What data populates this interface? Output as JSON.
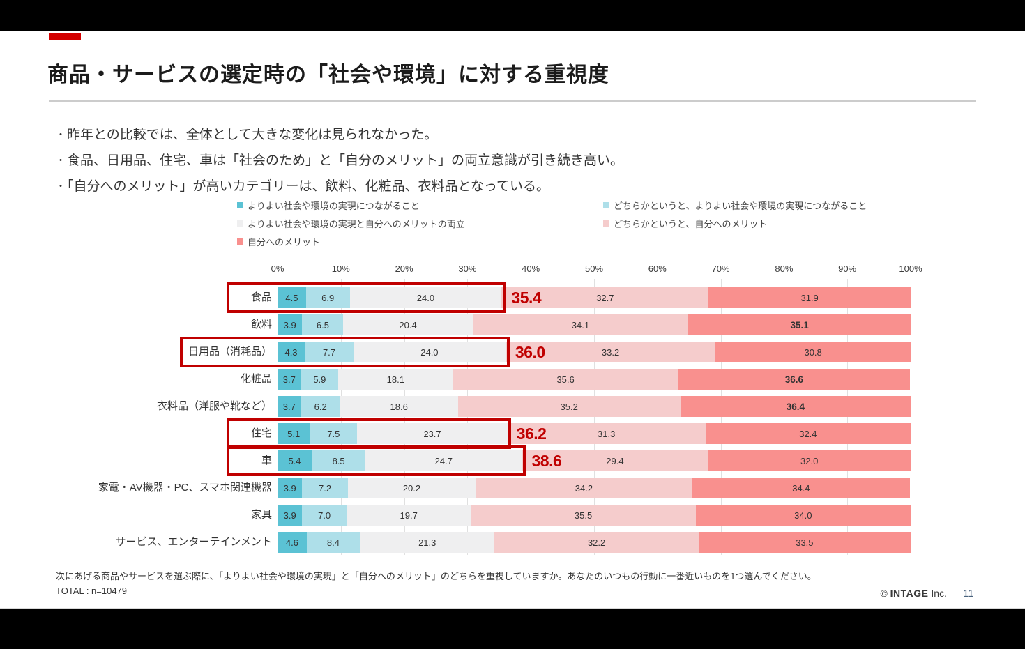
{
  "slide": {
    "title": "商品・サービスの選定時の「社会や環境」に対する重視度",
    "bullets": [
      "昨年との比較では、全体として大きな変化は見られなかった。",
      "食品、日用品、住宅、車は「社会のため」と「自分のメリット」の両立意識が引き続き高い。",
      "「自分へのメリット」が高いカテゴリーは、飲料、化粧品、衣料品となっている。"
    ],
    "footnote": "次にあげる商品やサービスを選ぶ際に、「よりよい社会や環境の実現」と「自分へのメリット」のどちらを重視していますか。あなたのいつもの行動に一番近いものを1つ選んでください。",
    "total_label": "TOTAL : n=10479",
    "copyright_symbol": "©",
    "copyright_brand": "INTAGE",
    "copyright_suffix": "Inc.",
    "page_number": "11"
  },
  "colors": {
    "accent": "#d40000",
    "highlight": "#c00000",
    "teal": "#5bc2d4",
    "cyan": "#aedfe9",
    "gray": "#efeff0",
    "pink": "#f5cccc",
    "red": "#f9908e"
  },
  "chart_data": {
    "type": "bar",
    "orientation": "horizontal",
    "stacked": true,
    "grid": true,
    "xlim": [
      0,
      100
    ],
    "x_ticks": [
      "0%",
      "10%",
      "20%",
      "30%",
      "40%",
      "50%",
      "60%",
      "70%",
      "80%",
      "90%",
      "100%"
    ],
    "legend_position": "top",
    "legend": [
      {
        "label": "よりよい社会や環境の実現につながること",
        "color_key": "teal",
        "col": 0,
        "row": 0
      },
      {
        "label": "どちらかというと、よりよい社会や環境の実現につながること",
        "color_key": "cyan",
        "col": 1,
        "row": 0
      },
      {
        "label": "よりよい社会や環境の実現と自分へのメリットの両立",
        "color_key": "gray",
        "col": 0,
        "row": 1
      },
      {
        "label": "どちらかというと、自分へのメリット",
        "color_key": "pink",
        "col": 1,
        "row": 1
      },
      {
        "label": "自分へのメリット",
        "color_key": "red",
        "col": 0,
        "row": 2
      }
    ],
    "series_color_keys": [
      "teal",
      "cyan",
      "gray",
      "pink",
      "red"
    ],
    "categories": [
      "食品",
      "飲料",
      "日用品（消耗品）",
      "化粧品",
      "衣料品（洋服や靴など）",
      "住宅",
      "車",
      "家電・AV機器・PC、スマホ関連機器",
      "家具",
      "サービス、エンターテインメント"
    ],
    "rows": [
      {
        "category": "食品",
        "values": [
          4.5,
          6.9,
          24.0,
          32.7,
          31.9
        ],
        "highlight_sum": 35.4,
        "bold_index": null
      },
      {
        "category": "飲料",
        "values": [
          3.9,
          6.5,
          20.4,
          34.1,
          35.1
        ],
        "highlight_sum": null,
        "bold_index": 4
      },
      {
        "category": "日用品（消耗品）",
        "values": [
          4.3,
          7.7,
          24.0,
          33.2,
          30.8
        ],
        "highlight_sum": 36.0,
        "bold_index": null
      },
      {
        "category": "化粧品",
        "values": [
          3.7,
          5.9,
          18.1,
          35.6,
          36.6
        ],
        "highlight_sum": null,
        "bold_index": 4
      },
      {
        "category": "衣料品（洋服や靴など）",
        "values": [
          3.7,
          6.2,
          18.6,
          35.2,
          36.4
        ],
        "highlight_sum": null,
        "bold_index": 4
      },
      {
        "category": "住宅",
        "values": [
          5.1,
          7.5,
          23.7,
          31.3,
          32.4
        ],
        "highlight_sum": 36.2,
        "bold_index": null
      },
      {
        "category": "車",
        "values": [
          5.4,
          8.5,
          24.7,
          29.4,
          32.0
        ],
        "highlight_sum": 38.6,
        "bold_index": null
      },
      {
        "category": "家電・AV機器・PC、スマホ関連機器",
        "values": [
          3.9,
          7.2,
          20.2,
          34.2,
          34.4
        ],
        "highlight_sum": null,
        "bold_index": null
      },
      {
        "category": "家具",
        "values": [
          3.9,
          7.0,
          19.7,
          35.5,
          34.0
        ],
        "highlight_sum": null,
        "bold_index": null
      },
      {
        "category": "サービス、エンターテインメント",
        "values": [
          4.6,
          8.4,
          21.3,
          32.2,
          33.5
        ],
        "highlight_sum": null,
        "bold_index": null
      }
    ]
  }
}
